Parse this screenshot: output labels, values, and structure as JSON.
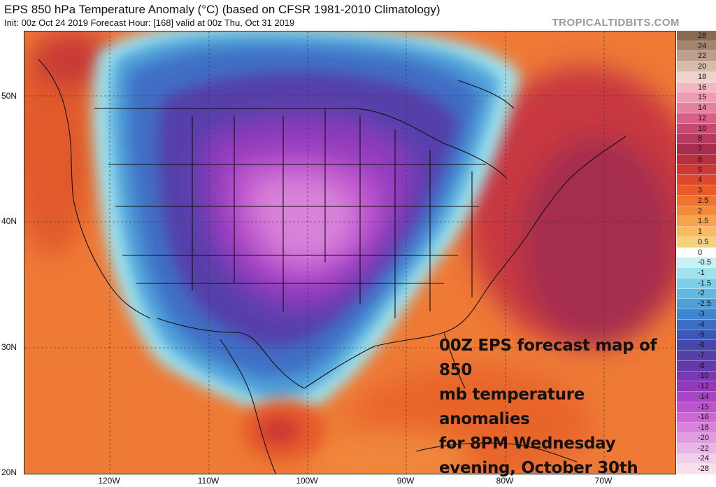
{
  "header": {
    "title": "EPS 850 hPa Temperature Anomaly (°C) (based on CFSR 1981-2010 Climatology)",
    "subtitle": "Init: 00z Oct 24 2019   Forecast Hour: [168]   valid at 00z Thu, Oct 31 2019",
    "brand": "TROPICALTIDBITS.COM"
  },
  "axes": {
    "lat_labels": [
      "50N",
      "40N",
      "30N",
      "20N"
    ],
    "lon_labels": [
      "120W",
      "110W",
      "100W",
      "90W",
      "80W",
      "70W"
    ]
  },
  "colorbar": {
    "labels": [
      "28",
      "24",
      "22",
      "20",
      "18",
      "16",
      "15",
      "14",
      "12",
      "10",
      "8",
      "7",
      "6",
      "5",
      "4",
      "3",
      "2.5",
      "2",
      "1.5",
      "1",
      "0.5",
      "0",
      "-0.5",
      "-1",
      "-1.5",
      "-2",
      "-2.5",
      "-3",
      "-4",
      "-5",
      "-6",
      "-7",
      "-8",
      "-10",
      "-12",
      "-14",
      "-15",
      "-16",
      "-18",
      "-20",
      "-22",
      "-24",
      "-28"
    ],
    "colors": [
      "#8a6a55",
      "#a48570",
      "#bd9f8c",
      "#d6bcab",
      "#f0d4cc",
      "#f3b6c3",
      "#ee9db2",
      "#e6829f",
      "#d9608a",
      "#c84a73",
      "#b63a5e",
      "#a52e4d",
      "#b83040",
      "#cc3a33",
      "#dc4a2c",
      "#e65c2a",
      "#ee7430",
      "#f28a3a",
      "#f5a44a",
      "#f7bb60",
      "#f7d27c",
      "#ffffff",
      "#c9f1f5",
      "#9fe3ee",
      "#7dd0e8",
      "#62b8e0",
      "#4e9fd8",
      "#3f86cf",
      "#3a6dc4",
      "#3b58b7",
      "#4547ad",
      "#5540a9",
      "#643aab",
      "#7a38b3",
      "#913bbc",
      "#a846c5",
      "#bd54cd",
      "#cc68d3",
      "#d883d9",
      "#e19ddf",
      "#e8b6e5",
      "#f0cde9",
      "#f8dfec"
    ]
  },
  "annotation": {
    "lines": [
      "00Z EPS forecast map of 850",
      "mb temperature anomalies",
      "for 8PM Wednesday",
      "evening, October 30th"
    ]
  }
}
